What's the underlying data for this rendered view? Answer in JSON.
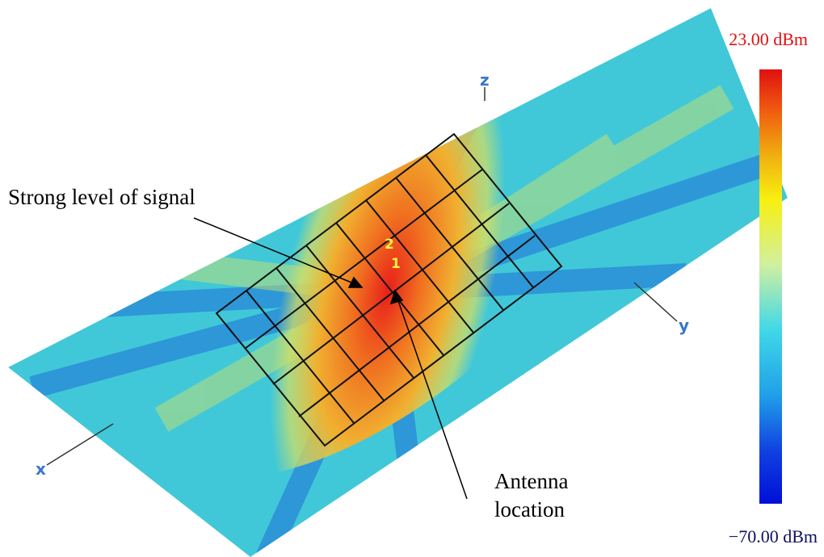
{
  "figure": {
    "annotations": [
      {
        "text": "Strong level of signal"
      },
      {
        "lines": [
          "Antenna",
          "location"
        ]
      }
    ],
    "colorbar": {
      "max": {
        "value": 23,
        "label": "23.00 dBm"
      },
      "min": {
        "value": -70,
        "label": "−70.00 dBm"
      }
    },
    "axes": [
      "x",
      "y",
      "z"
    ],
    "markers": [
      "2",
      "1"
    ]
  }
}
